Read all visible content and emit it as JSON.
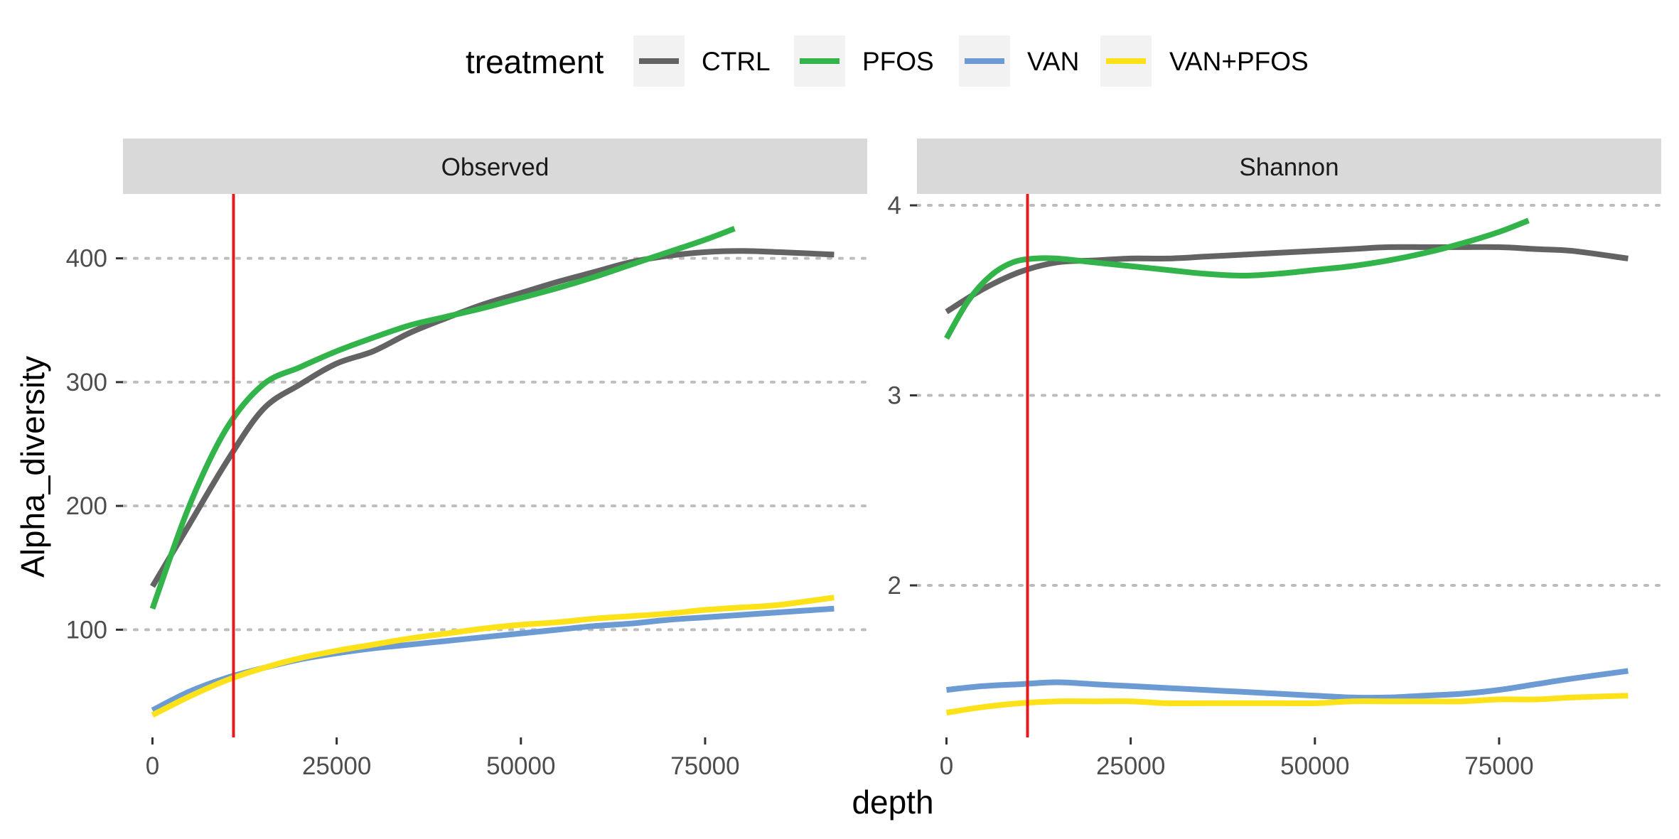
{
  "chart_data": {
    "type": "line",
    "xlabel": "depth",
    "ylabel": "Alpha_diversity",
    "legend": {
      "title": "treatment",
      "position": "top",
      "entries": [
        {
          "name": "CTRL",
          "color": "#636363"
        },
        {
          "name": "PFOS",
          "color": "#33b44a"
        },
        {
          "name": "VAN",
          "color": "#6c9ad3"
        },
        {
          "name": "VAN+PFOS",
          "color": "#fde21a"
        }
      ]
    },
    "reference_line": {
      "x": 11000,
      "color": "#e41a1c"
    },
    "panels": [
      {
        "title": "Observed",
        "xlim": [
          -4000,
          97000
        ],
        "ylim": [
          13,
          452
        ],
        "x_ticks": [
          0,
          25000,
          50000,
          75000
        ],
        "x_tick_labels": [
          "0",
          "25000",
          "50000",
          "75000"
        ],
        "y_ticks": [
          100,
          200,
          300,
          400
        ],
        "y_tick_labels": [
          "100",
          "200",
          "300",
          "400"
        ],
        "grid": "horizontal-dotted",
        "series": [
          {
            "name": "CTRL",
            "color": "#636363",
            "x": [
              0,
              5000,
              10000,
              15000,
              20000,
              25000,
              30000,
              35000,
              40000,
              45000,
              50000,
              55000,
              60000,
              65000,
              70000,
              75000,
              80000,
              85000,
              92500
            ],
            "y": [
              135,
              185,
              235,
              278,
              298,
              315,
              325,
              340,
              352,
              363,
              372,
              381,
              389,
              397,
              402,
              405,
              406,
              405,
              403
            ]
          },
          {
            "name": "PFOS",
            "color": "#33b44a",
            "x": [
              0,
              5000,
              10000,
              15000,
              20000,
              25000,
              30000,
              35000,
              40000,
              45000,
              50000,
              55000,
              60000,
              65000,
              70000,
              75000,
              79000
            ],
            "y": [
              117,
              200,
              262,
              298,
              312,
              325,
              336,
              346,
              353,
              360,
              368,
              376,
              385,
              395,
              405,
              415,
              424
            ]
          },
          {
            "name": "VAN",
            "color": "#6c9ad3",
            "x": [
              0,
              5000,
              10000,
              15000,
              20000,
              25000,
              30000,
              35000,
              40000,
              45000,
              50000,
              55000,
              60000,
              65000,
              70000,
              75000,
              80000,
              85000,
              92500
            ],
            "y": [
              35,
              50,
              61,
              69,
              76,
              81,
              85,
              88,
              91,
              94,
              97,
              100,
              103,
              105,
              108,
              110,
              112,
              114,
              117
            ]
          },
          {
            "name": "VAN+PFOS",
            "color": "#fde21a",
            "x": [
              0,
              5000,
              10000,
              15000,
              20000,
              25000,
              30000,
              35000,
              40000,
              45000,
              50000,
              55000,
              60000,
              65000,
              70000,
              75000,
              80000,
              85000,
              92500
            ],
            "y": [
              31,
              46,
              59,
              69,
              77,
              83,
              88,
              93,
              97,
              101,
              104,
              106,
              109,
              111,
              113,
              116,
              118,
              120,
              126
            ]
          }
        ]
      },
      {
        "title": "Shannon",
        "xlim": [
          -4000,
          97000
        ],
        "ylim": [
          1.2,
          4.06
        ],
        "x_ticks": [
          0,
          25000,
          50000,
          75000
        ],
        "x_tick_labels": [
          "0",
          "25000",
          "50000",
          "75000"
        ],
        "y_ticks": [
          2,
          3,
          4
        ],
        "y_tick_labels": [
          "2",
          "3",
          "4"
        ],
        "grid": "horizontal-dotted",
        "series": [
          {
            "name": "CTRL",
            "color": "#636363",
            "x": [
              0,
              5000,
              10000,
              15000,
              20000,
              25000,
              30000,
              35000,
              40000,
              45000,
              50000,
              55000,
              60000,
              65000,
              70000,
              75000,
              80000,
              85000,
              92500
            ],
            "y": [
              3.44,
              3.56,
              3.65,
              3.7,
              3.71,
              3.72,
              3.72,
              3.73,
              3.74,
              3.75,
              3.76,
              3.77,
              3.78,
              3.78,
              3.78,
              3.78,
              3.77,
              3.76,
              3.72
            ]
          },
          {
            "name": "PFOS",
            "color": "#33b44a",
            "x": [
              0,
              3000,
              6000,
              9000,
              12000,
              15000,
              20000,
              25000,
              30000,
              35000,
              40000,
              45000,
              50000,
              55000,
              60000,
              65000,
              70000,
              75000,
              79000
            ],
            "y": [
              3.3,
              3.5,
              3.63,
              3.7,
              3.72,
              3.72,
              3.7,
              3.68,
              3.66,
              3.64,
              3.63,
              3.64,
              3.66,
              3.68,
              3.71,
              3.75,
              3.8,
              3.86,
              3.92
            ]
          },
          {
            "name": "VAN",
            "color": "#6c9ad3",
            "x": [
              0,
              5000,
              10000,
              15000,
              20000,
              25000,
              30000,
              35000,
              40000,
              45000,
              50000,
              55000,
              60000,
              65000,
              70000,
              75000,
              80000,
              85000,
              92500
            ],
            "y": [
              1.45,
              1.47,
              1.48,
              1.49,
              1.48,
              1.47,
              1.46,
              1.45,
              1.44,
              1.43,
              1.42,
              1.41,
              1.41,
              1.42,
              1.43,
              1.45,
              1.48,
              1.51,
              1.55
            ]
          },
          {
            "name": "VAN+PFOS",
            "color": "#fde21a",
            "x": [
              0,
              5000,
              10000,
              15000,
              20000,
              25000,
              30000,
              35000,
              40000,
              45000,
              50000,
              55000,
              60000,
              65000,
              70000,
              75000,
              80000,
              85000,
              92500
            ],
            "y": [
              1.33,
              1.36,
              1.38,
              1.39,
              1.39,
              1.39,
              1.38,
              1.38,
              1.38,
              1.38,
              1.38,
              1.39,
              1.39,
              1.39,
              1.39,
              1.4,
              1.4,
              1.41,
              1.42
            ]
          }
        ]
      }
    ]
  }
}
